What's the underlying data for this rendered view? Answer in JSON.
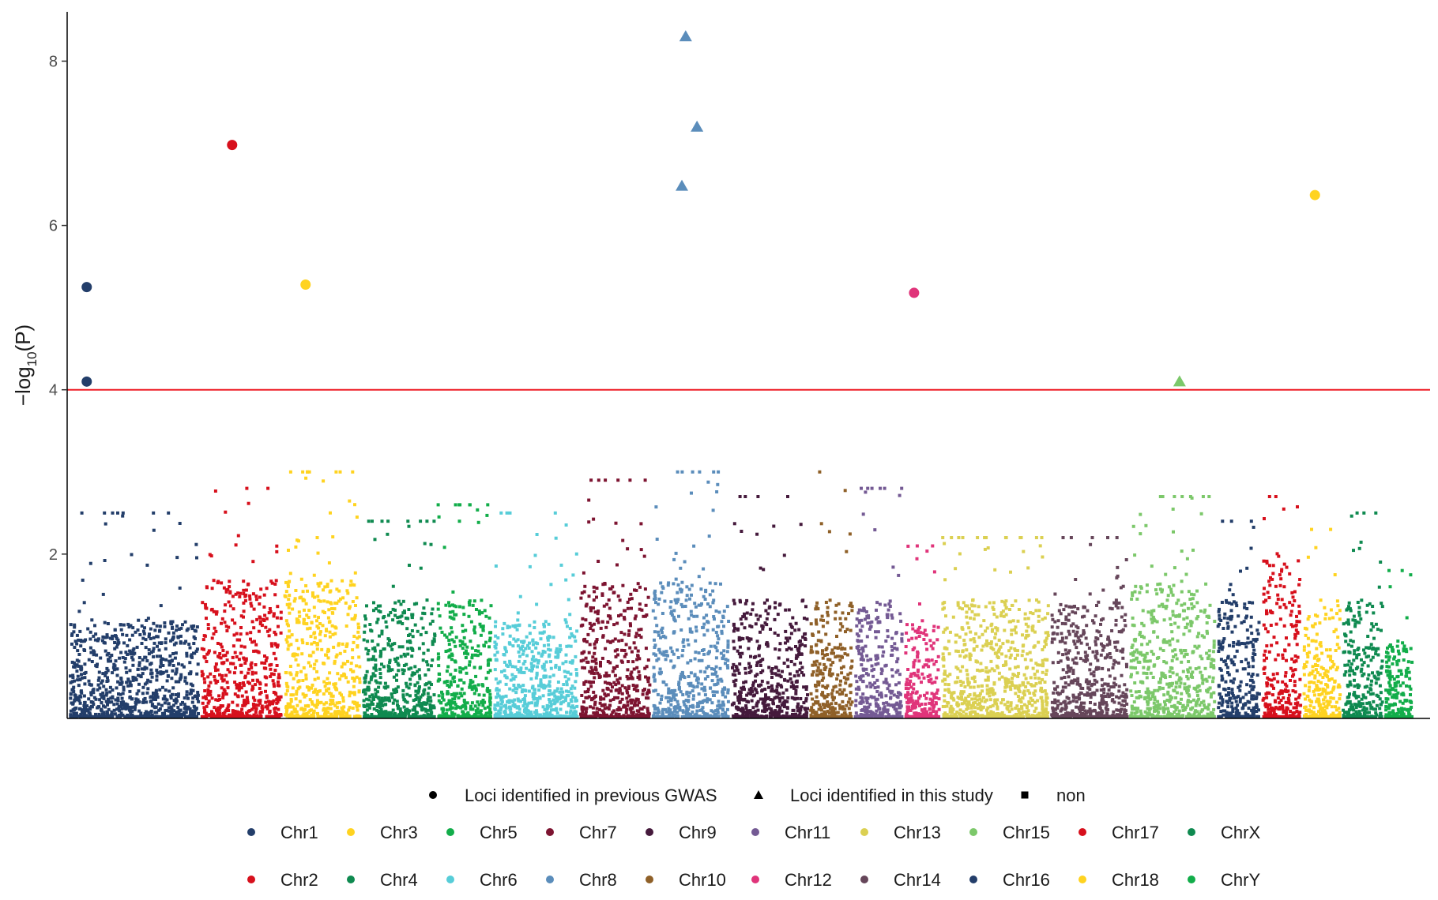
{
  "chart_data": {
    "type": "scatter",
    "title": "",
    "xlabel": "",
    "ylabel": "−log10(P)",
    "ylabel_parts": {
      "minus_log": "−log",
      "subscript": "10",
      "rest": "(P)"
    },
    "ylim": [
      0,
      8.6
    ],
    "yticks": [
      "2",
      "4",
      "6",
      "8"
    ],
    "ytick_values": [
      2,
      4,
      6,
      8
    ],
    "threshold": {
      "y": 4,
      "color": "#ee1c25"
    },
    "grid": false,
    "legend_placement": "bottom",
    "chromosomes": [
      {
        "name": "Chr1",
        "color": "#233e6a",
        "base": 0.5,
        "peak": 2.5
      },
      {
        "name": "Chr2",
        "color": "#d7101c",
        "base": 0.7,
        "peak": 2.8
      },
      {
        "name": "Chr3",
        "color": "#ffd320",
        "base": 0.7,
        "peak": 3.0
      },
      {
        "name": "Chr4",
        "color": "#0f8a50",
        "base": 0.6,
        "peak": 2.4
      },
      {
        "name": "Chr5",
        "color": "#12ad4a",
        "base": 0.6,
        "peak": 2.6
      },
      {
        "name": "Chr6",
        "color": "#57cdd8",
        "base": 0.5,
        "peak": 2.5
      },
      {
        "name": "Chr7",
        "color": "#7d1431",
        "base": 0.7,
        "peak": 2.9
      },
      {
        "name": "Chr8",
        "color": "#5b8dbb",
        "base": 0.7,
        "peak": 3.0
      },
      {
        "name": "Chr9",
        "color": "#451a3c",
        "base": 0.6,
        "peak": 2.7
      },
      {
        "name": "Chr10",
        "color": "#8f6028",
        "base": 0.6,
        "peak": 3.0
      },
      {
        "name": "Chr11",
        "color": "#745a94",
        "base": 0.6,
        "peak": 2.8
      },
      {
        "name": "Chr12",
        "color": "#e0347a",
        "base": 0.5,
        "peak": 2.1
      },
      {
        "name": "Chr13",
        "color": "#dbd052",
        "base": 0.6,
        "peak": 2.2
      },
      {
        "name": "Chr14",
        "color": "#66465a",
        "base": 0.6,
        "peak": 2.2
      },
      {
        "name": "Chr15",
        "color": "#7cc86a",
        "base": 0.7,
        "peak": 2.7
      },
      {
        "name": "Chr16",
        "color": "#233e6a",
        "base": 0.6,
        "peak": 2.4
      },
      {
        "name": "Chr17",
        "color": "#d7101c",
        "base": 0.8,
        "peak": 2.7
      },
      {
        "name": "Chr18",
        "color": "#ffd320",
        "base": 0.6,
        "peak": 2.3
      },
      {
        "name": "ChrX",
        "color": "#0f8a50",
        "base": 0.6,
        "peak": 2.5
      },
      {
        "name": "ChrY",
        "color": "#12ad4a",
        "base": 0.4,
        "peak": 1.8
      }
    ],
    "highlighted_loci": [
      {
        "chr": "Chr1",
        "y": 5.25,
        "type": "Loci identified in previous GWAS"
      },
      {
        "chr": "Chr1",
        "y": 4.1,
        "type": "Loci identified in previous GWAS"
      },
      {
        "chr": "Chr2",
        "y": 6.98,
        "type": "Loci identified in previous GWAS"
      },
      {
        "chr": "Chr3",
        "y": 5.28,
        "type": "Loci identified in previous GWAS"
      },
      {
        "chr": "Chr8",
        "y": 8.3,
        "type": "Loci identified in this study"
      },
      {
        "chr": "Chr8",
        "y": 7.2,
        "type": "Loci identified in this study"
      },
      {
        "chr": "Chr8",
        "y": 6.48,
        "type": "Loci identified in this study"
      },
      {
        "chr": "Chr12",
        "y": 5.18,
        "type": "Loci identified in previous GWAS"
      },
      {
        "chr": "Chr15",
        "y": 4.1,
        "type": "Loci identified in this study"
      },
      {
        "chr": "Chr18",
        "y": 6.37,
        "type": "Loci identified in previous GWAS"
      }
    ],
    "shape_legend": [
      {
        "label": "Loci identified in previous GWAS",
        "shape": "circle"
      },
      {
        "label": "Loci identified in this study",
        "shape": "triangle"
      },
      {
        "label": "non",
        "shape": "square"
      }
    ],
    "color_legend_row1": [
      "Chr1",
      "Chr3",
      "Chr5",
      "Chr7",
      "Chr9",
      "Chr11",
      "Chr13",
      "Chr15",
      "Chr17",
      "ChrX"
    ],
    "color_legend_row2": [
      "Chr2",
      "Chr4",
      "Chr6",
      "Chr8",
      "Chr10",
      "Chr12",
      "Chr14",
      "Chr16",
      "Chr18",
      "ChrY"
    ]
  }
}
